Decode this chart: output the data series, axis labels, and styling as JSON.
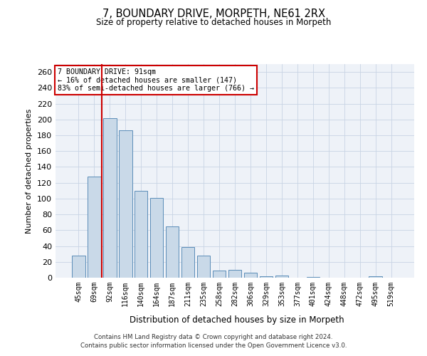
{
  "title1": "7, BOUNDARY DRIVE, MORPETH, NE61 2RX",
  "title2": "Size of property relative to detached houses in Morpeth",
  "xlabel": "Distribution of detached houses by size in Morpeth",
  "ylabel": "Number of detached properties",
  "categories": [
    "45sqm",
    "69sqm",
    "92sqm",
    "116sqm",
    "140sqm",
    "164sqm",
    "187sqm",
    "211sqm",
    "235sqm",
    "258sqm",
    "282sqm",
    "306sqm",
    "329sqm",
    "353sqm",
    "377sqm",
    "401sqm",
    "424sqm",
    "448sqm",
    "472sqm",
    "495sqm",
    "519sqm"
  ],
  "values": [
    28,
    128,
    202,
    186,
    110,
    101,
    65,
    39,
    28,
    9,
    10,
    6,
    2,
    3,
    0,
    1,
    0,
    0,
    0,
    2,
    0
  ],
  "bar_color": "#c9d9e8",
  "bar_edge_color": "#5b8db8",
  "red_line_index": 1,
  "annotation_title": "7 BOUNDARY DRIVE: 91sqm",
  "annotation_line1": "← 16% of detached houses are smaller (147)",
  "annotation_line2": "83% of semi-detached houses are larger (766) →",
  "annotation_box_color": "#ffffff",
  "annotation_box_edge": "#cc0000",
  "red_line_color": "#cc0000",
  "footer1": "Contains HM Land Registry data © Crown copyright and database right 2024.",
  "footer2": "Contains public sector information licensed under the Open Government Licence v3.0.",
  "ylim": [
    0,
    270
  ],
  "yticks": [
    0,
    20,
    40,
    60,
    80,
    100,
    120,
    140,
    160,
    180,
    200,
    220,
    240,
    260
  ],
  "bg_color": "#eef2f8"
}
